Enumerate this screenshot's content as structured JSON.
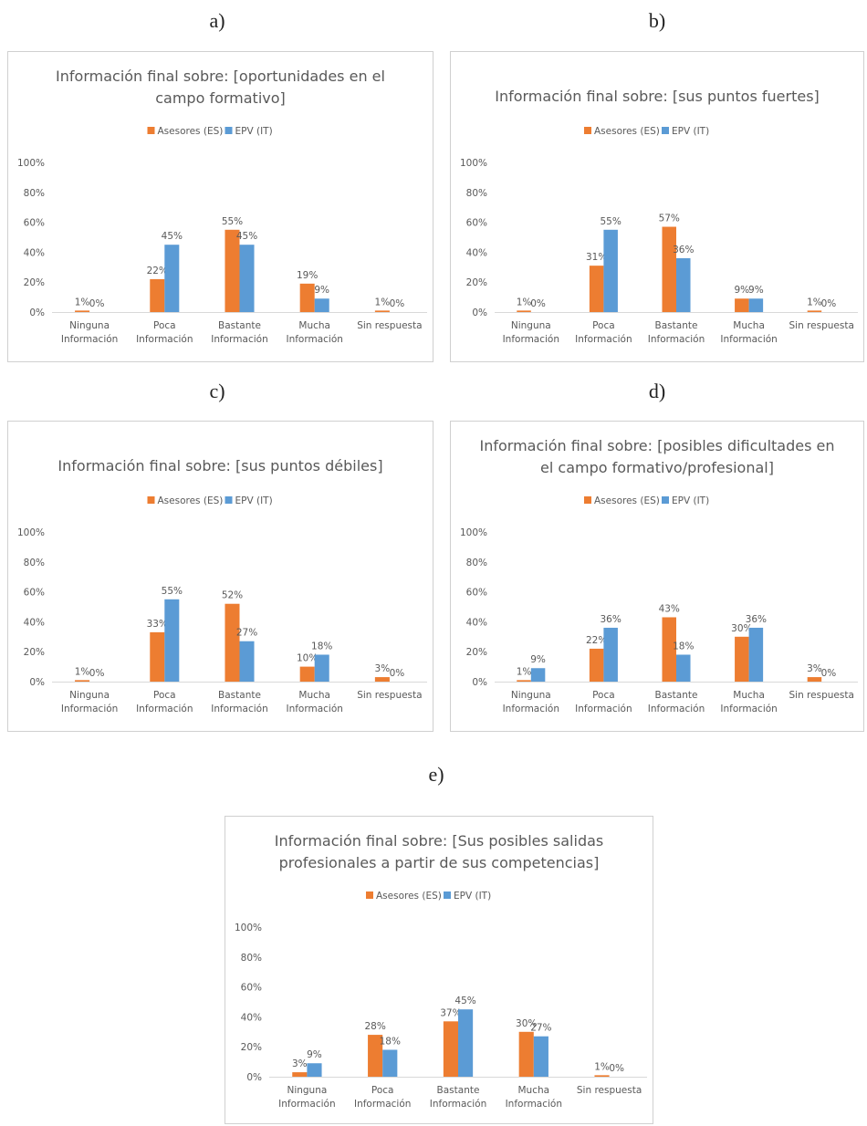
{
  "legend": {
    "es": "Asesores (ES)",
    "it": "EPV (IT)"
  },
  "colors": {
    "es": "#ED7D31",
    "it": "#5B9BD5"
  },
  "y_ticks": [
    "0%",
    "20%",
    "40%",
    "60%",
    "80%",
    "100%"
  ],
  "categories": [
    [
      "Ninguna",
      "Información"
    ],
    [
      "Poca",
      "Información"
    ],
    [
      "Bastante",
      "Información"
    ],
    [
      "Mucha",
      "Información"
    ],
    [
      "Sin respuesta"
    ]
  ],
  "chart_data": [
    {
      "letter": "a)",
      "type": "bar",
      "title": [
        "Información final sobre: [oportunidades en el",
        "campo formativo]"
      ],
      "categories": [
        "Ninguna Información",
        "Poca Información",
        "Bastante Información",
        "Mucha Información",
        "Sin respuesta"
      ],
      "ylim": [
        0,
        100
      ],
      "series": [
        {
          "name": "Asesores (ES)",
          "values": [
            1,
            22,
            55,
            19,
            1
          ]
        },
        {
          "name": "EPV (IT)",
          "values": [
            0,
            45,
            45,
            9,
            0
          ]
        }
      ]
    },
    {
      "letter": "b)",
      "type": "bar",
      "title": [
        "Información final sobre: [sus puntos fuertes]"
      ],
      "categories": [
        "Ninguna Información",
        "Poca Información",
        "Bastante Información",
        "Mucha Información",
        "Sin respuesta"
      ],
      "ylim": [
        0,
        100
      ],
      "series": [
        {
          "name": "Asesores (ES)",
          "values": [
            1,
            31,
            57,
            9,
            1
          ]
        },
        {
          "name": "EPV (IT)",
          "values": [
            0,
            55,
            36,
            9,
            0
          ]
        }
      ]
    },
    {
      "letter": "c)",
      "type": "bar",
      "title": [
        "Información final sobre: [sus puntos débiles]"
      ],
      "categories": [
        "Ninguna Información",
        "Poca Información",
        "Bastante Información",
        "Mucha Información",
        "Sin respuesta"
      ],
      "ylim": [
        0,
        100
      ],
      "series": [
        {
          "name": "Asesores (ES)",
          "values": [
            1,
            33,
            52,
            10,
            3
          ]
        },
        {
          "name": "EPV (IT)",
          "values": [
            0,
            55,
            27,
            18,
            0
          ]
        }
      ]
    },
    {
      "letter": "d)",
      "type": "bar",
      "title": [
        "Información final sobre: [posibles dificultades en",
        "el campo formativo/profesional]"
      ],
      "categories": [
        "Ninguna Información",
        "Poca Información",
        "Bastante Información",
        "Mucha Información",
        "Sin respuesta"
      ],
      "ylim": [
        0,
        100
      ],
      "series": [
        {
          "name": "Asesores (ES)",
          "values": [
            1,
            22,
            43,
            30,
            3
          ]
        },
        {
          "name": "EPV (IT)",
          "values": [
            9,
            36,
            18,
            36,
            0
          ]
        }
      ]
    },
    {
      "letter": "e)",
      "type": "bar",
      "title": [
        "Información final sobre: [Sus posibles salidas",
        "profesionales a partir de sus competencias]"
      ],
      "categories": [
        "Ninguna Información",
        "Poca Información",
        "Bastante Información",
        "Mucha Información",
        "Sin respuesta"
      ],
      "ylim": [
        0,
        100
      ],
      "series": [
        {
          "name": "Asesores (ES)",
          "values": [
            3,
            28,
            37,
            30,
            1
          ]
        },
        {
          "name": "EPV (IT)",
          "values": [
            9,
            18,
            45,
            27,
            0
          ]
        }
      ]
    }
  ]
}
